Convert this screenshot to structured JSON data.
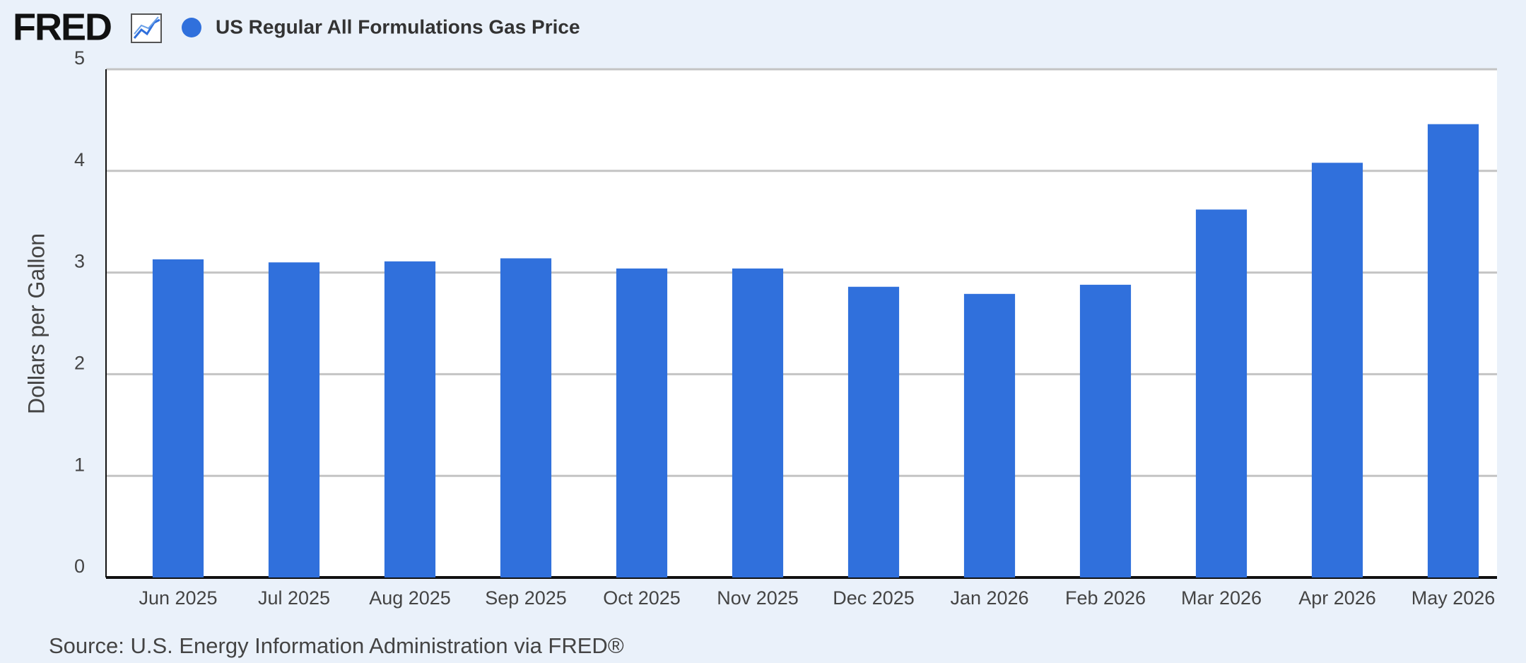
{
  "chart_data": {
    "type": "bar",
    "logo": "FRED",
    "title": "US Regular All Formulations Gas Price",
    "y_label": "Dollars per Gallon",
    "source": "Source: U.S. Energy Information Administration via FRED®",
    "categories": [
      "Jun 2025",
      "Jul 2025",
      "Aug 2025",
      "Sep 2025",
      "Oct 2025",
      "Nov 2025",
      "Dec 2025",
      "Jan 2026",
      "Feb 2026",
      "Mar 2026",
      "Apr 2026",
      "May 2026"
    ],
    "series": [
      {
        "name": "US Regular All Formulations Gas Price",
        "color": "#3070dc",
        "values": [
          3.13,
          3.1,
          3.11,
          3.14,
          3.04,
          3.04,
          2.86,
          2.79,
          2.88,
          3.62,
          4.08,
          4.46
        ]
      }
    ],
    "ylim": [
      0,
      5
    ],
    "yticks": [
      0,
      1,
      2,
      3,
      4,
      5
    ],
    "grid": true
  }
}
